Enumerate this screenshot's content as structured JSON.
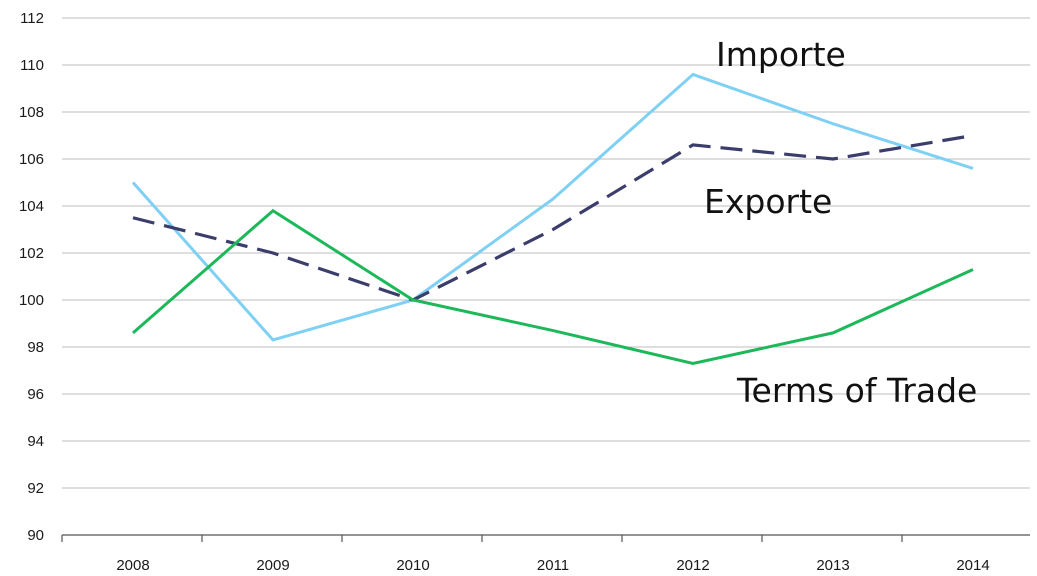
{
  "chart_data": {
    "type": "line",
    "title": "",
    "xlabel": "",
    "ylabel": "",
    "categories": [
      "2008",
      "2009",
      "2010",
      "2011",
      "2012",
      "2013",
      "2014"
    ],
    "ylim": [
      90,
      112
    ],
    "yticks": [
      90,
      92,
      94,
      96,
      98,
      100,
      102,
      104,
      106,
      108,
      110,
      112
    ],
    "grid": true,
    "legend": "none",
    "series": [
      {
        "name": "Importe",
        "values": [
          105.0,
          98.3,
          100.0,
          104.3,
          109.6,
          107.5,
          105.6
        ],
        "color": "#7fd0f5",
        "dash": "solid"
      },
      {
        "name": "Exporte",
        "values": [
          103.5,
          102.0,
          100.0,
          103.0,
          106.6,
          106.0,
          107.0
        ],
        "color": "#3b3d6b",
        "dash": "dashed"
      },
      {
        "name": "Terms of Trade",
        "values": [
          98.6,
          103.8,
          100.0,
          98.7,
          97.3,
          98.6,
          101.3
        ],
        "color": "#1db85a",
        "dash": "solid"
      }
    ]
  }
}
